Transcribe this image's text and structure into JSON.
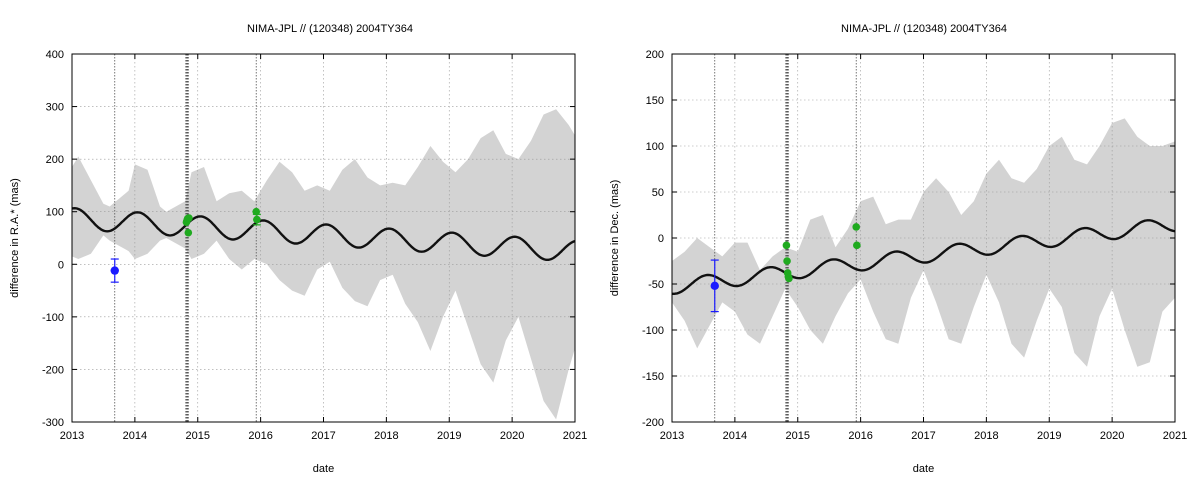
{
  "chart_data": [
    {
      "type": "line",
      "title": "NIMA-JPL // (120348) 2004TY364",
      "xlabel": "date",
      "ylabel": "difference in R.A.* (mas)",
      "xlim": [
        2013,
        2021
      ],
      "ylim": [
        -300,
        400
      ],
      "xticks": [
        2013,
        2014,
        2015,
        2016,
        2017,
        2018,
        2019,
        2020,
        2021
      ],
      "xtick_labels": [
        "2013",
        "2014",
        "2015",
        "2016",
        "2017",
        "2018",
        "2019",
        "2020",
        "2021"
      ],
      "yticks": [
        -300,
        -200,
        -100,
        0,
        100,
        200,
        300,
        400
      ],
      "ytick_labels": [
        "-300",
        "-200",
        "-100",
        "0",
        "100",
        "200",
        "300",
        "400"
      ],
      "grid": true,
      "colors": {
        "band": "#d3d3d3",
        "model": "#111111",
        "blue": "#1a1aff",
        "green": "#1faa1f"
      },
      "observation_epochs": [
        2013.68,
        2014.81,
        2014.82,
        2014.83,
        2014.84,
        2014.85,
        2015.93
      ],
      "model": {
        "x0": 2013.0,
        "x1": 2021.0,
        "mean_start": 87,
        "mean_end": 25,
        "amplitude": 20,
        "phase_year": 2013.05
      },
      "uncertainty_band": {
        "x": [
          2013.0,
          2013.1,
          2013.3,
          2013.5,
          2013.6,
          2013.9,
          2014.0,
          2014.2,
          2014.4,
          2014.5,
          2014.8,
          2014.9,
          2015.1,
          2015.3,
          2015.5,
          2015.7,
          2015.9,
          2016.1,
          2016.3,
          2016.5,
          2016.7,
          2016.9,
          2017.1,
          2017.3,
          2017.5,
          2017.7,
          2017.9,
          2018.1,
          2018.3,
          2018.5,
          2018.7,
          2018.9,
          2019.1,
          2019.3,
          2019.5,
          2019.7,
          2019.9,
          2020.1,
          2020.3,
          2020.5,
          2020.7,
          2020.9,
          2021.0
        ],
        "upper": [
          185,
          205,
          160,
          115,
          110,
          140,
          190,
          180,
          110,
          100,
          120,
          175,
          185,
          120,
          135,
          140,
          120,
          160,
          195,
          175,
          140,
          150,
          140,
          180,
          200,
          165,
          150,
          155,
          150,
          185,
          225,
          195,
          175,
          200,
          240,
          255,
          210,
          200,
          235,
          285,
          295,
          265,
          245
        ],
        "lower": [
          15,
          10,
          20,
          55,
          45,
          25,
          10,
          20,
          45,
          50,
          30,
          10,
          20,
          45,
          10,
          -10,
          10,
          0,
          -30,
          -50,
          -60,
          -10,
          5,
          -45,
          -70,
          -80,
          -30,
          -20,
          -75,
          -110,
          -165,
          -100,
          -50,
          -120,
          -190,
          -225,
          -145,
          -100,
          -180,
          -260,
          -295,
          -200,
          -160
        ]
      },
      "series": [
        {
          "marker": "circle",
          "color": "blue",
          "points": [
            {
              "x": 2013.68,
              "y": -12,
              "err": 22
            }
          ]
        },
        {
          "marker": "square",
          "color": "green",
          "points": [
            {
              "x": 2014.82,
              "y": 80
            },
            {
              "x": 2014.83,
              "y": 84
            },
            {
              "x": 2014.84,
              "y": 87
            },
            {
              "x": 2014.85,
              "y": 60
            },
            {
              "x": 2014.86,
              "y": 88
            },
            {
              "x": 2015.93,
              "y": 100
            },
            {
              "x": 2015.94,
              "y": 85,
              "err": 10
            }
          ]
        }
      ]
    },
    {
      "type": "line",
      "title": "NIMA-JPL // (120348) 2004TY364",
      "xlabel": "date",
      "ylabel": "difference in Dec. (mas)",
      "xlim": [
        2013,
        2021
      ],
      "ylim": [
        -200,
        200
      ],
      "xticks": [
        2013,
        2014,
        2015,
        2016,
        2017,
        2018,
        2019,
        2020,
        2021
      ],
      "xtick_labels": [
        "2013",
        "2014",
        "2015",
        "2016",
        "2017",
        "2018",
        "2019",
        "2020",
        "2021"
      ],
      "yticks": [
        -200,
        -150,
        -100,
        -50,
        0,
        50,
        100,
        150,
        200
      ],
      "ytick_labels": [
        "-200",
        "-150",
        "-100",
        "-50",
        "0",
        "50",
        "100",
        "150",
        "200"
      ],
      "grid": true,
      "colors": {
        "band": "#d3d3d3",
        "model": "#111111",
        "blue": "#1a1aff",
        "green": "#1faa1f"
      },
      "observation_epochs": [
        2013.68,
        2014.81,
        2014.82,
        2014.83,
        2014.84,
        2014.85,
        2015.93
      ],
      "model": {
        "x0": 2013.0,
        "x1": 2021.0,
        "mean_start": -53,
        "mean_end": 15,
        "amplitude": 8,
        "phase_year": 2013.55
      },
      "uncertainty_band": {
        "x": [
          2013.0,
          2013.2,
          2013.4,
          2013.6,
          2013.8,
          2014.0,
          2014.2,
          2014.4,
          2014.6,
          2014.8,
          2015.0,
          2015.2,
          2015.4,
          2015.6,
          2015.8,
          2016.0,
          2016.2,
          2016.4,
          2016.6,
          2016.8,
          2017.0,
          2017.2,
          2017.4,
          2017.6,
          2017.8,
          2018.0,
          2018.2,
          2018.4,
          2018.6,
          2018.8,
          2019.0,
          2019.2,
          2019.4,
          2019.6,
          2019.8,
          2020.0,
          2020.2,
          2020.4,
          2020.6,
          2020.8,
          2021.0
        ],
        "upper": [
          -25,
          -15,
          0,
          -10,
          -20,
          -5,
          -5,
          -35,
          -20,
          -10,
          -15,
          20,
          25,
          -10,
          10,
          40,
          45,
          15,
          20,
          20,
          50,
          65,
          50,
          25,
          40,
          70,
          85,
          65,
          60,
          75,
          100,
          110,
          85,
          80,
          100,
          125,
          130,
          110,
          100,
          100,
          105
        ],
        "lower": [
          -70,
          -90,
          -120,
          -95,
          -70,
          -80,
          -105,
          -115,
          -85,
          -55,
          -75,
          -100,
          -115,
          -85,
          -60,
          -45,
          -80,
          -110,
          -115,
          -65,
          -35,
          -70,
          -110,
          -115,
          -75,
          -40,
          -70,
          -115,
          -130,
          -90,
          -55,
          -75,
          -125,
          -140,
          -85,
          -55,
          -100,
          -140,
          -135,
          -80,
          -65
        ]
      },
      "series": [
        {
          "marker": "circle",
          "color": "blue",
          "points": [
            {
              "x": 2013.68,
              "y": -52,
              "err": 28
            }
          ]
        },
        {
          "marker": "square",
          "color": "green",
          "points": [
            {
              "x": 2014.82,
              "y": -8
            },
            {
              "x": 2014.83,
              "y": -25
            },
            {
              "x": 2014.84,
              "y": -38
            },
            {
              "x": 2014.85,
              "y": -42
            },
            {
              "x": 2014.86,
              "y": -44
            },
            {
              "x": 2015.93,
              "y": 12
            },
            {
              "x": 2015.94,
              "y": -8
            }
          ]
        }
      ]
    }
  ]
}
